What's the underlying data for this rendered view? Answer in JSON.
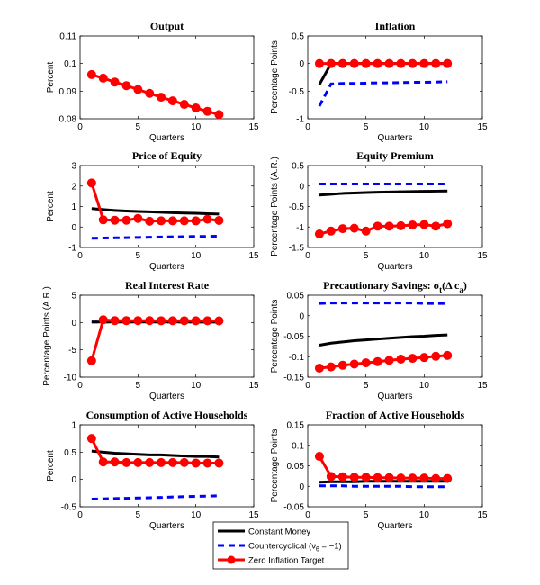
{
  "chart_data": [
    {
      "type": "line",
      "title": "Output",
      "xlabel": "Quarters",
      "ylabel": "Percent",
      "xlim": [
        0,
        15
      ],
      "ylim": [
        0.08,
        0.11
      ],
      "xticks": [
        0,
        5,
        10,
        15
      ],
      "yticks": [
        0.08,
        0.09,
        0.1,
        0.11
      ],
      "x": [
        1,
        2,
        3,
        4,
        5,
        6,
        7,
        8,
        9,
        10,
        11,
        12
      ],
      "series": [
        {
          "name": "Zero Inflation Target",
          "values": [
            0.096,
            0.0947,
            0.0933,
            0.092,
            0.0906,
            0.0892,
            0.0878,
            0.0865,
            0.0852,
            0.0839,
            0.0827,
            0.0815
          ]
        }
      ]
    },
    {
      "type": "line",
      "title": "Inflation",
      "xlabel": "Quarters",
      "ylabel": "Percentage Points",
      "xlim": [
        0,
        15
      ],
      "ylim": [
        -1,
        0.5
      ],
      "xticks": [
        0,
        5,
        10,
        15
      ],
      "yticks": [
        -1,
        -0.5,
        0,
        0.5
      ],
      "x": [
        1,
        2,
        3,
        4,
        5,
        6,
        7,
        8,
        9,
        10,
        11,
        12
      ],
      "series": [
        {
          "name": "Constant Money",
          "values": [
            -0.38,
            0,
            0,
            0,
            0,
            0,
            0,
            0,
            0,
            0,
            0,
            0
          ]
        },
        {
          "name": "Countercyclical",
          "values": [
            -0.77,
            -0.37,
            -0.36,
            -0.36,
            -0.355,
            -0.35,
            -0.35,
            -0.345,
            -0.34,
            -0.34,
            -0.335,
            -0.33
          ]
        },
        {
          "name": "Zero Inflation Target",
          "values": [
            0,
            0,
            0,
            0,
            0,
            0,
            0,
            0,
            0,
            0,
            0,
            0
          ]
        }
      ]
    },
    {
      "type": "line",
      "title": "Price of Equity",
      "xlabel": "Quarters",
      "ylabel": "Percent",
      "xlim": [
        0,
        15
      ],
      "ylim": [
        -1,
        3
      ],
      "xticks": [
        0,
        5,
        10,
        15
      ],
      "yticks": [
        -1,
        0,
        1,
        2,
        3
      ],
      "x": [
        1,
        2,
        3,
        4,
        5,
        6,
        7,
        8,
        9,
        10,
        11,
        12
      ],
      "series": [
        {
          "name": "Constant Money",
          "values": [
            0.9,
            0.85,
            0.81,
            0.78,
            0.76,
            0.74,
            0.72,
            0.7,
            0.68,
            0.67,
            0.65,
            0.63
          ]
        },
        {
          "name": "Countercyclical",
          "values": [
            -0.55,
            -0.54,
            -0.53,
            -0.52,
            -0.51,
            -0.5,
            -0.49,
            -0.48,
            -0.47,
            -0.46,
            -0.46,
            -0.45
          ]
        },
        {
          "name": "Zero Inflation Target",
          "values": [
            2.15,
            0.35,
            0.33,
            0.33,
            0.42,
            0.28,
            0.3,
            0.3,
            0.3,
            0.3,
            0.38,
            0.32
          ]
        }
      ]
    },
    {
      "type": "line",
      "title": "Equity Premium",
      "xlabel": "Quarters",
      "ylabel": "Percentage Points (A.R.)",
      "xlim": [
        0,
        15
      ],
      "ylim": [
        -1.5,
        0.5
      ],
      "xticks": [
        0,
        5,
        10,
        15
      ],
      "yticks": [
        -1.5,
        -1,
        -0.5,
        0,
        0.5
      ],
      "x": [
        1,
        2,
        3,
        4,
        5,
        6,
        7,
        8,
        9,
        10,
        11,
        12
      ],
      "series": [
        {
          "name": "Constant Money",
          "values": [
            -0.22,
            -0.2,
            -0.18,
            -0.17,
            -0.16,
            -0.15,
            -0.145,
            -0.14,
            -0.135,
            -0.13,
            -0.125,
            -0.12
          ]
        },
        {
          "name": "Countercyclical",
          "values": [
            0.05,
            0.05,
            0.05,
            0.05,
            0.05,
            0.05,
            0.05,
            0.05,
            0.05,
            0.05,
            0.05,
            0.05
          ]
        },
        {
          "name": "Zero Inflation Target",
          "values": [
            -1.17,
            -1.1,
            -1.04,
            -1.03,
            -1.1,
            -0.98,
            -0.98,
            -0.97,
            -0.95,
            -0.94,
            -0.98,
            -0.92
          ]
        }
      ]
    },
    {
      "type": "line",
      "title": "Real Interest Rate",
      "xlabel": "Quarters",
      "ylabel": "Percentage Points (A.R.)",
      "xlim": [
        0,
        15
      ],
      "ylim": [
        -10,
        5
      ],
      "xticks": [
        0,
        5,
        10,
        15
      ],
      "yticks": [
        -10,
        -5,
        0,
        5
      ],
      "x": [
        1,
        2,
        3,
        4,
        5,
        6,
        7,
        8,
        9,
        10,
        11,
        12
      ],
      "series": [
        {
          "name": "Constant Money",
          "values": [
            0.1,
            0.1,
            0.1,
            0.1,
            0.1,
            0.1,
            0.1,
            0.1,
            0.1,
            0.1,
            0.1,
            0.1
          ]
        },
        {
          "name": "Countercyclical",
          "values": [
            0.1,
            0.1,
            0.1,
            0.1,
            0.1,
            0.1,
            0.1,
            0.1,
            0.1,
            0.1,
            0.1,
            0.1
          ]
        },
        {
          "name": "Zero Inflation Target",
          "values": [
            -7,
            0.5,
            0.35,
            0.35,
            0.35,
            0.35,
            0.33,
            0.33,
            0.33,
            0.32,
            0.32,
            0.3
          ]
        }
      ]
    },
    {
      "type": "line",
      "title": "Precautionary Savings:  σ",
      "title_sub": "t",
      "title_rest": "(Δ c",
      "title_sub2": "a",
      "title_end": ")",
      "xlabel": "Quarters",
      "ylabel": "Percentage Points",
      "xlim": [
        0,
        15
      ],
      "ylim": [
        -0.15,
        0.05
      ],
      "xticks": [
        0,
        5,
        10,
        15
      ],
      "yticks": [
        -0.15,
        -0.1,
        -0.05,
        0,
        0.05
      ],
      "x": [
        1,
        2,
        3,
        4,
        5,
        6,
        7,
        8,
        9,
        10,
        11,
        12
      ],
      "series": [
        {
          "name": "Constant Money",
          "values": [
            -0.072,
            -0.067,
            -0.064,
            -0.061,
            -0.059,
            -0.057,
            -0.055,
            -0.053,
            -0.051,
            -0.05,
            -0.048,
            -0.047
          ]
        },
        {
          "name": "Countercyclical",
          "values": [
            0.03,
            0.031,
            0.031,
            0.031,
            0.031,
            0.031,
            0.031,
            0.031,
            0.031,
            0.03,
            0.03,
            0.03
          ]
        },
        {
          "name": "Zero Inflation Target",
          "values": [
            -0.128,
            -0.125,
            -0.121,
            -0.118,
            -0.115,
            -0.112,
            -0.109,
            -0.106,
            -0.104,
            -0.102,
            -0.099,
            -0.097
          ]
        }
      ]
    },
    {
      "type": "line",
      "title": "Consumption of Active Households",
      "xlabel": "Quarters",
      "ylabel": "Percent",
      "xlim": [
        0,
        15
      ],
      "ylim": [
        -0.5,
        1
      ],
      "xticks": [
        0,
        5,
        10,
        15
      ],
      "yticks": [
        -0.5,
        0,
        0.5,
        1
      ],
      "x": [
        1,
        2,
        3,
        4,
        5,
        6,
        7,
        8,
        9,
        10,
        11,
        12
      ],
      "series": [
        {
          "name": "Constant Money",
          "values": [
            0.52,
            0.5,
            0.48,
            0.47,
            0.46,
            0.45,
            0.45,
            0.44,
            0.43,
            0.42,
            0.42,
            0.41
          ]
        },
        {
          "name": "Countercyclical",
          "values": [
            -0.36,
            -0.355,
            -0.35,
            -0.345,
            -0.34,
            -0.335,
            -0.33,
            -0.32,
            -0.315,
            -0.31,
            -0.305,
            -0.3
          ]
        },
        {
          "name": "Zero Inflation Target",
          "values": [
            0.75,
            0.32,
            0.32,
            0.31,
            0.31,
            0.31,
            0.31,
            0.31,
            0.31,
            0.3,
            0.3,
            0.3
          ]
        }
      ]
    },
    {
      "type": "line",
      "title": "Fraction of Active Households",
      "xlabel": "Quarters",
      "ylabel": "Percentage Points",
      "xlim": [
        0,
        15
      ],
      "ylim": [
        -0.05,
        0.15
      ],
      "xticks": [
        0,
        5,
        10,
        15
      ],
      "yticks": [
        -0.05,
        0,
        0.05,
        0.1,
        0.15
      ],
      "x": [
        1,
        2,
        3,
        4,
        5,
        6,
        7,
        8,
        9,
        10,
        11,
        12
      ],
      "series": [
        {
          "name": "Constant Money",
          "values": [
            0.01,
            0.011,
            0.011,
            0.011,
            0.012,
            0.012,
            0.012,
            0.012,
            0.012,
            0.012,
            0.012,
            0.012
          ]
        },
        {
          "name": "Countercyclical",
          "values": [
            0.001,
            0.001,
            0.001,
            0.0,
            0.0,
            0.0,
            0.0,
            0.0,
            -0.001,
            -0.001,
            -0.001,
            -0.001
          ]
        },
        {
          "name": "Zero Inflation Target",
          "values": [
            0.073,
            0.024,
            0.023,
            0.022,
            0.022,
            0.021,
            0.021,
            0.02,
            0.02,
            0.02,
            0.019,
            0.019
          ]
        }
      ]
    }
  ],
  "legend": {
    "placement": "bottom-center",
    "items": [
      {
        "label": "Constant Money",
        "color": "#000000",
        "style": "solid"
      },
      {
        "label": "Countercyclical (ν",
        "sub": "θ",
        "label_end": " = −1)",
        "color": "#0000ff",
        "style": "dashed"
      },
      {
        "label": "Zero Inflation Target",
        "color": "#ff0000",
        "style": "solid-circle"
      }
    ]
  },
  "series_styles": {
    "Constant Money": {
      "color": "#000000"
    },
    "Countercyclical": {
      "color": "#0000ff"
    },
    "Zero Inflation Target": {
      "color": "#ff0000"
    }
  }
}
